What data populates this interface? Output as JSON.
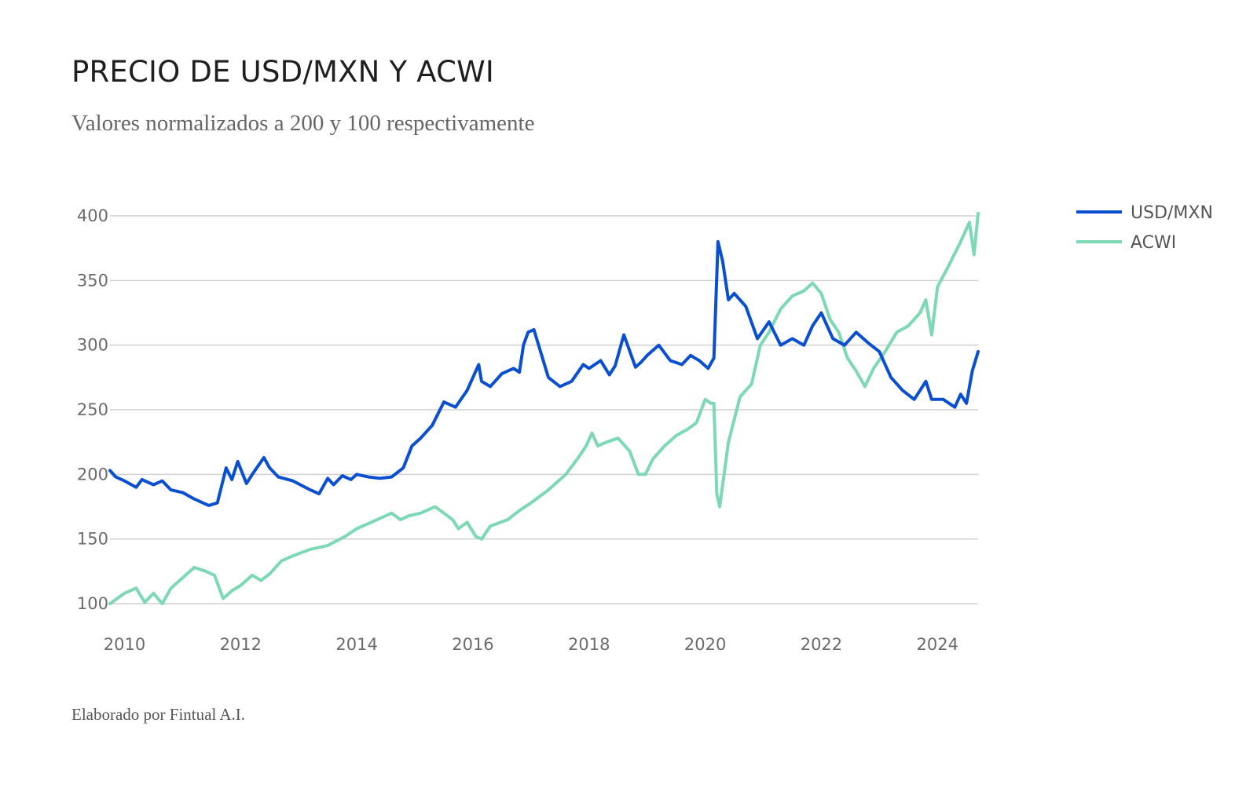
{
  "header": {
    "title": "PRECIO DE USD/MXN Y ACWI",
    "subtitle": "Valores normalizados a 200 y 100 respectivamente"
  },
  "footer": {
    "credit": "Elaborado por Fintual A.I."
  },
  "colors": {
    "usdmxn": "#0a4fd0",
    "acwi": "#7dd8b5",
    "grid": "#d0d0d0"
  },
  "chart_data": {
    "type": "line",
    "title": "PRECIO DE USD/MXN Y ACWI",
    "subtitle": "Valores normalizados a 200 y 100 respectivamente",
    "xlabel": "",
    "ylabel": "",
    "xlim": [
      2009.75,
      2024.7
    ],
    "ylim": [
      100,
      400
    ],
    "yticks": [
      100,
      150,
      200,
      250,
      300,
      350,
      400
    ],
    "xticks": [
      2010,
      2012,
      2014,
      2016,
      2018,
      2020,
      2022,
      2024
    ],
    "xtick_labels": [
      "2010",
      "2012",
      "2014",
      "2016",
      "2018",
      "2020",
      "2022",
      "2024"
    ],
    "grid": true,
    "legend_position": "right",
    "series": [
      {
        "name": "USD/MXN",
        "color": "#0a4fd0",
        "x": [
          2009.75,
          2009.85,
          2010.0,
          2010.2,
          2010.3,
          2010.5,
          2010.65,
          2010.8,
          2011.0,
          2011.2,
          2011.45,
          2011.6,
          2011.75,
          2011.85,
          2011.95,
          2012.1,
          2012.2,
          2012.4,
          2012.5,
          2012.65,
          2012.9,
          2013.2,
          2013.35,
          2013.5,
          2013.6,
          2013.75,
          2013.9,
          2014.0,
          2014.2,
          2014.4,
          2014.6,
          2014.8,
          2014.95,
          2015.1,
          2015.3,
          2015.5,
          2015.7,
          2015.9,
          2016.1,
          2016.15,
          2016.3,
          2016.5,
          2016.7,
          2016.8,
          2016.87,
          2016.95,
          2017.05,
          2017.3,
          2017.5,
          2017.7,
          2017.9,
          2018.0,
          2018.2,
          2018.35,
          2018.45,
          2018.6,
          2018.8,
          2018.9,
          2019.0,
          2019.2,
          2019.4,
          2019.6,
          2019.75,
          2019.9,
          2020.05,
          2020.15,
          2020.22,
          2020.3,
          2020.4,
          2020.5,
          2020.7,
          2020.9,
          2021.1,
          2021.3,
          2021.5,
          2021.7,
          2021.85,
          2022.0,
          2022.2,
          2022.4,
          2022.6,
          2022.8,
          2023.0,
          2023.2,
          2023.4,
          2023.6,
          2023.8,
          2023.9,
          2024.1,
          2024.3,
          2024.4,
          2024.5,
          2024.6,
          2024.7
        ],
        "values": [
          203,
          198,
          195,
          190,
          196,
          192,
          195,
          188,
          186,
          181,
          176,
          178,
          205,
          196,
          210,
          193,
          200,
          213,
          205,
          198,
          195,
          188,
          185,
          197,
          192,
          199,
          196,
          200,
          198,
          197,
          198,
          205,
          222,
          228,
          238,
          256,
          252,
          265,
          285,
          272,
          268,
          278,
          282,
          279,
          300,
          310,
          312,
          275,
          268,
          272,
          285,
          282,
          288,
          277,
          284,
          308,
          283,
          287,
          292,
          300,
          288,
          285,
          292,
          288,
          282,
          290,
          380,
          365,
          335,
          340,
          330,
          305,
          318,
          300,
          305,
          300,
          315,
          325,
          305,
          300,
          310,
          302,
          295,
          275,
          265,
          258,
          272,
          258,
          258,
          252,
          262,
          255,
          280,
          295
        ]
      },
      {
        "name": "ACWI",
        "color": "#7dd8b5",
        "x": [
          2009.75,
          2010.0,
          2010.2,
          2010.35,
          2010.5,
          2010.65,
          2010.8,
          2011.0,
          2011.2,
          2011.4,
          2011.55,
          2011.7,
          2011.85,
          2012.0,
          2012.2,
          2012.35,
          2012.5,
          2012.7,
          2012.9,
          2013.2,
          2013.5,
          2013.8,
          2014.0,
          2014.2,
          2014.4,
          2014.6,
          2014.75,
          2014.9,
          2015.1,
          2015.35,
          2015.5,
          2015.65,
          2015.75,
          2015.9,
          2016.05,
          2016.15,
          2016.3,
          2016.6,
          2016.8,
          2017.0,
          2017.3,
          2017.6,
          2017.8,
          2017.95,
          2018.05,
          2018.15,
          2018.3,
          2018.5,
          2018.7,
          2018.85,
          2018.97,
          2019.1,
          2019.3,
          2019.5,
          2019.7,
          2019.85,
          2020.0,
          2020.1,
          2020.15,
          2020.2,
          2020.25,
          2020.4,
          2020.6,
          2020.8,
          2020.95,
          2021.1,
          2021.3,
          2021.5,
          2021.7,
          2021.85,
          2022.0,
          2022.15,
          2022.3,
          2022.45,
          2022.6,
          2022.75,
          2022.9,
          2023.1,
          2023.3,
          2023.5,
          2023.7,
          2023.8,
          2023.9,
          2024.0,
          2024.2,
          2024.4,
          2024.55,
          2024.63,
          2024.7
        ],
        "values": [
          100,
          108,
          112,
          101,
          108,
          100,
          112,
          120,
          128,
          125,
          122,
          104,
          110,
          114,
          122,
          118,
          123,
          133,
          137,
          142,
          145,
          152,
          158,
          162,
          166,
          170,
          165,
          168,
          170,
          175,
          170,
          165,
          158,
          163,
          152,
          150,
          160,
          165,
          172,
          178,
          188,
          200,
          212,
          222,
          232,
          222,
          225,
          228,
          218,
          200,
          200,
          212,
          222,
          230,
          235,
          240,
          258,
          255,
          255,
          185,
          175,
          225,
          260,
          270,
          300,
          310,
          328,
          338,
          342,
          348,
          340,
          320,
          310,
          290,
          280,
          268,
          282,
          295,
          310,
          315,
          325,
          335,
          308,
          345,
          362,
          380,
          395,
          370,
          402
        ]
      }
    ]
  }
}
